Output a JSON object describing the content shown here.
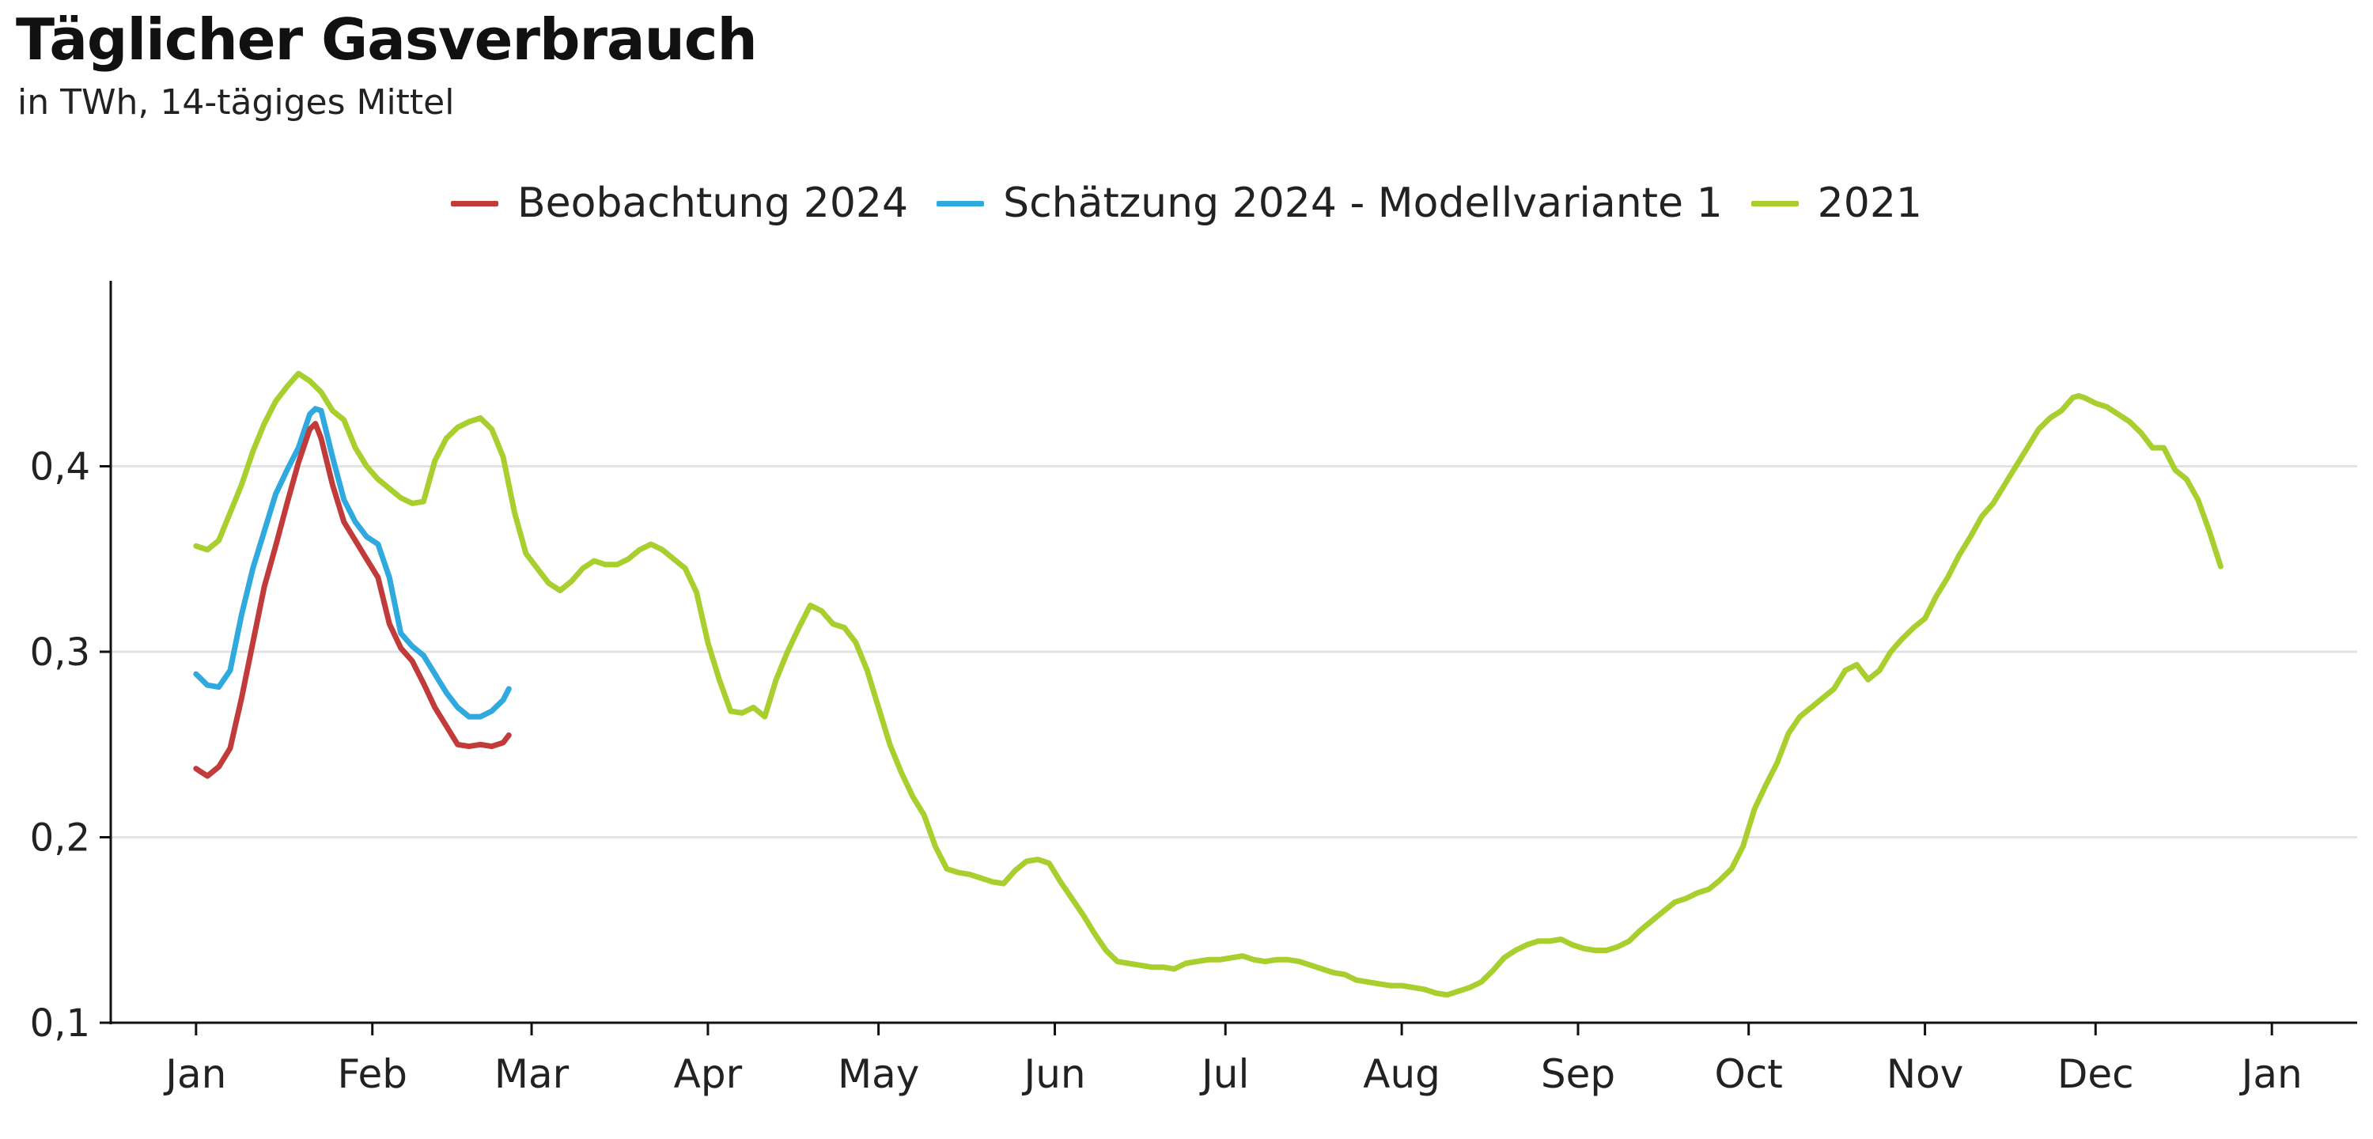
{
  "chart_data": {
    "type": "line",
    "title": "Täglicher Gasverbrauch",
    "subtitle": "in TWh, 14-tägiges Mittel",
    "xlabel": "",
    "ylabel": "",
    "ylim": [
      0.1,
      0.5
    ],
    "yticks": [
      0.1,
      0.2,
      0.3,
      0.4
    ],
    "ytick_labels": [
      "0,1",
      "0,2",
      "0,3",
      "0,4"
    ],
    "xlim": [
      -15,
      380
    ],
    "xticks": [
      0,
      31,
      59,
      90,
      120,
      151,
      181,
      212,
      243,
      273,
      304,
      334,
      365
    ],
    "xtick_labels": [
      "Jan",
      "Feb",
      "Mar",
      "Apr",
      "May",
      "Jun",
      "Jul",
      "Aug",
      "Sep",
      "Oct",
      "Nov",
      "Dec",
      "Jan"
    ],
    "grid": "horizontal",
    "legend_position": "top-center",
    "series": [
      {
        "name": "Beobachtung 2024",
        "color": "#c23b3b",
        "points": [
          [
            0,
            0.237
          ],
          [
            2,
            0.233
          ],
          [
            4,
            0.238
          ],
          [
            6,
            0.248
          ],
          [
            8,
            0.275
          ],
          [
            10,
            0.305
          ],
          [
            12,
            0.335
          ],
          [
            14,
            0.357
          ],
          [
            16,
            0.38
          ],
          [
            18,
            0.402
          ],
          [
            20,
            0.42
          ],
          [
            21,
            0.423
          ],
          [
            22,
            0.415
          ],
          [
            24,
            0.39
          ],
          [
            26,
            0.37
          ],
          [
            28,
            0.36
          ],
          [
            30,
            0.35
          ],
          [
            32,
            0.34
          ],
          [
            34,
            0.315
          ],
          [
            36,
            0.302
          ],
          [
            38,
            0.295
          ],
          [
            40,
            0.283
          ],
          [
            42,
            0.27
          ],
          [
            44,
            0.26
          ],
          [
            46,
            0.25
          ],
          [
            48,
            0.249
          ],
          [
            50,
            0.25
          ],
          [
            52,
            0.249
          ],
          [
            54,
            0.251
          ],
          [
            55,
            0.255
          ]
        ]
      },
      {
        "name": "Schätzung 2024 - Modellvariante 1",
        "color": "#2fa9de",
        "points": [
          [
            0,
            0.288
          ],
          [
            2,
            0.282
          ],
          [
            4,
            0.281
          ],
          [
            6,
            0.29
          ],
          [
            8,
            0.32
          ],
          [
            10,
            0.345
          ],
          [
            12,
            0.365
          ],
          [
            14,
            0.385
          ],
          [
            16,
            0.398
          ],
          [
            18,
            0.41
          ],
          [
            20,
            0.428
          ],
          [
            21,
            0.431
          ],
          [
            22,
            0.43
          ],
          [
            24,
            0.405
          ],
          [
            26,
            0.382
          ],
          [
            28,
            0.37
          ],
          [
            30,
            0.362
          ],
          [
            32,
            0.358
          ],
          [
            34,
            0.34
          ],
          [
            36,
            0.31
          ],
          [
            38,
            0.303
          ],
          [
            40,
            0.298
          ],
          [
            42,
            0.288
          ],
          [
            44,
            0.278
          ],
          [
            46,
            0.27
          ],
          [
            48,
            0.265
          ],
          [
            50,
            0.265
          ],
          [
            52,
            0.268
          ],
          [
            54,
            0.274
          ],
          [
            55,
            0.28
          ]
        ]
      },
      {
        "name": "2021",
        "color": "#a8cf2d",
        "points": [
          [
            0,
            0.357
          ],
          [
            2,
            0.355
          ],
          [
            4,
            0.36
          ],
          [
            6,
            0.375
          ],
          [
            8,
            0.39
          ],
          [
            10,
            0.408
          ],
          [
            12,
            0.423
          ],
          [
            14,
            0.435
          ],
          [
            16,
            0.443
          ],
          [
            18,
            0.45
          ],
          [
            20,
            0.446
          ],
          [
            22,
            0.44
          ],
          [
            24,
            0.43
          ],
          [
            26,
            0.425
          ],
          [
            28,
            0.41
          ],
          [
            30,
            0.4
          ],
          [
            32,
            0.393
          ],
          [
            34,
            0.388
          ],
          [
            36,
            0.383
          ],
          [
            38,
            0.38
          ],
          [
            40,
            0.381
          ],
          [
            42,
            0.403
          ],
          [
            44,
            0.415
          ],
          [
            46,
            0.421
          ],
          [
            48,
            0.424
          ],
          [
            50,
            0.426
          ],
          [
            52,
            0.42
          ],
          [
            54,
            0.405
          ],
          [
            56,
            0.375
          ],
          [
            58,
            0.353
          ],
          [
            60,
            0.345
          ],
          [
            62,
            0.337
          ],
          [
            64,
            0.333
          ],
          [
            66,
            0.338
          ],
          [
            68,
            0.345
          ],
          [
            70,
            0.349
          ],
          [
            72,
            0.347
          ],
          [
            74,
            0.347
          ],
          [
            76,
            0.35
          ],
          [
            78,
            0.355
          ],
          [
            80,
            0.358
          ],
          [
            82,
            0.355
          ],
          [
            84,
            0.35
          ],
          [
            86,
            0.345
          ],
          [
            88,
            0.332
          ],
          [
            90,
            0.305
          ],
          [
            92,
            0.285
          ],
          [
            94,
            0.268
          ],
          [
            96,
            0.267
          ],
          [
            98,
            0.27
          ],
          [
            100,
            0.265
          ],
          [
            102,
            0.285
          ],
          [
            104,
            0.3
          ],
          [
            106,
            0.313
          ],
          [
            108,
            0.325
          ],
          [
            110,
            0.322
          ],
          [
            112,
            0.315
          ],
          [
            114,
            0.313
          ],
          [
            116,
            0.305
          ],
          [
            118,
            0.29
          ],
          [
            120,
            0.27
          ],
          [
            122,
            0.25
          ],
          [
            124,
            0.235
          ],
          [
            126,
            0.222
          ],
          [
            128,
            0.212
          ],
          [
            130,
            0.195
          ],
          [
            132,
            0.183
          ],
          [
            134,
            0.181
          ],
          [
            136,
            0.18
          ],
          [
            138,
            0.178
          ],
          [
            140,
            0.176
          ],
          [
            142,
            0.175
          ],
          [
            144,
            0.182
          ],
          [
            146,
            0.187
          ],
          [
            148,
            0.188
          ],
          [
            150,
            0.186
          ],
          [
            152,
            0.176
          ],
          [
            154,
            0.167
          ],
          [
            156,
            0.158
          ],
          [
            158,
            0.148
          ],
          [
            160,
            0.139
          ],
          [
            162,
            0.133
          ],
          [
            164,
            0.132
          ],
          [
            166,
            0.131
          ],
          [
            168,
            0.13
          ],
          [
            170,
            0.13
          ],
          [
            172,
            0.129
          ],
          [
            174,
            0.132
          ],
          [
            176,
            0.133
          ],
          [
            178,
            0.134
          ],
          [
            180,
            0.134
          ],
          [
            182,
            0.135
          ],
          [
            184,
            0.136
          ],
          [
            186,
            0.134
          ],
          [
            188,
            0.133
          ],
          [
            190,
            0.134
          ],
          [
            192,
            0.134
          ],
          [
            194,
            0.133
          ],
          [
            196,
            0.131
          ],
          [
            198,
            0.129
          ],
          [
            200,
            0.127
          ],
          [
            202,
            0.126
          ],
          [
            204,
            0.123
          ],
          [
            206,
            0.122
          ],
          [
            208,
            0.121
          ],
          [
            210,
            0.12
          ],
          [
            212,
            0.12
          ],
          [
            214,
            0.119
          ],
          [
            216,
            0.118
          ],
          [
            218,
            0.116
          ],
          [
            220,
            0.115
          ],
          [
            222,
            0.117
          ],
          [
            224,
            0.119
          ],
          [
            226,
            0.122
          ],
          [
            228,
            0.128
          ],
          [
            230,
            0.135
          ],
          [
            232,
            0.139
          ],
          [
            234,
            0.142
          ],
          [
            236,
            0.144
          ],
          [
            238,
            0.144
          ],
          [
            240,
            0.145
          ],
          [
            242,
            0.142
          ],
          [
            244,
            0.14
          ],
          [
            246,
            0.139
          ],
          [
            248,
            0.139
          ],
          [
            250,
            0.141
          ],
          [
            252,
            0.144
          ],
          [
            254,
            0.15
          ],
          [
            256,
            0.155
          ],
          [
            258,
            0.16
          ],
          [
            260,
            0.165
          ],
          [
            262,
            0.167
          ],
          [
            264,
            0.17
          ],
          [
            266,
            0.172
          ],
          [
            268,
            0.177
          ],
          [
            270,
            0.183
          ],
          [
            272,
            0.195
          ],
          [
            274,
            0.215
          ],
          [
            276,
            0.228
          ],
          [
            278,
            0.24
          ],
          [
            280,
            0.256
          ],
          [
            282,
            0.265
          ],
          [
            284,
            0.27
          ],
          [
            286,
            0.275
          ],
          [
            288,
            0.28
          ],
          [
            290,
            0.29
          ],
          [
            292,
            0.293
          ],
          [
            294,
            0.285
          ],
          [
            296,
            0.29
          ],
          [
            298,
            0.3
          ],
          [
            300,
            0.307
          ],
          [
            302,
            0.313
          ],
          [
            304,
            0.318
          ],
          [
            306,
            0.33
          ],
          [
            308,
            0.34
          ],
          [
            310,
            0.352
          ],
          [
            312,
            0.362
          ],
          [
            314,
            0.373
          ],
          [
            316,
            0.38
          ],
          [
            318,
            0.39
          ],
          [
            320,
            0.4
          ],
          [
            322,
            0.41
          ],
          [
            324,
            0.42
          ],
          [
            326,
            0.426
          ],
          [
            328,
            0.43
          ],
          [
            330,
            0.437
          ],
          [
            331,
            0.438
          ],
          [
            332,
            0.437
          ],
          [
            334,
            0.434
          ],
          [
            336,
            0.432
          ],
          [
            338,
            0.428
          ],
          [
            340,
            0.424
          ],
          [
            342,
            0.418
          ],
          [
            344,
            0.41
          ],
          [
            346,
            0.41
          ],
          [
            348,
            0.398
          ],
          [
            350,
            0.393
          ],
          [
            352,
            0.382
          ],
          [
            354,
            0.365
          ],
          [
            356,
            0.346
          ]
        ]
      }
    ]
  }
}
